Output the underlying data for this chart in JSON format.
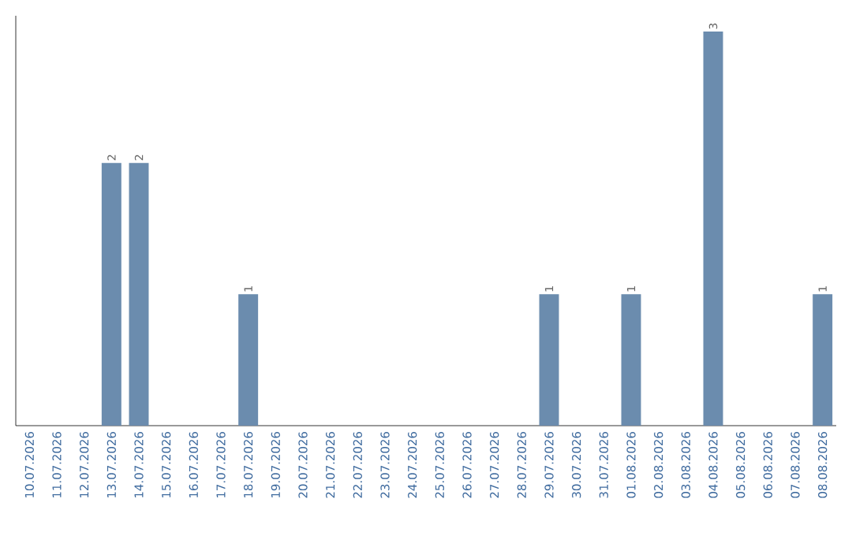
{
  "chart_data": {
    "type": "bar",
    "categories": [
      "10.07.2026",
      "11.07.2026",
      "12.07.2026",
      "13.07.2026",
      "14.07.2026",
      "15.07.2026",
      "16.07.2026",
      "17.07.2026",
      "18.07.2026",
      "19.07.2026",
      "20.07.2026",
      "21.07.2026",
      "22.07.2026",
      "23.07.2026",
      "24.07.2026",
      "25.07.2026",
      "26.07.2026",
      "27.07.2026",
      "28.07.2026",
      "29.07.2026",
      "30.07.2026",
      "31.07.2026",
      "01.08.2026",
      "02.08.2026",
      "03.08.2026",
      "04.08.2026",
      "05.08.2026",
      "06.08.2026",
      "07.08.2026",
      "08.08.2026"
    ],
    "values": [
      0,
      0,
      0,
      2,
      2,
      0,
      0,
      0,
      1,
      0,
      0,
      0,
      0,
      0,
      0,
      0,
      0,
      0,
      0,
      1,
      0,
      0,
      1,
      0,
      0,
      3,
      0,
      0,
      0,
      1
    ],
    "value_labels": [
      null,
      null,
      null,
      "2",
      "2",
      null,
      null,
      null,
      "1",
      null,
      null,
      null,
      null,
      null,
      null,
      null,
      null,
      null,
      null,
      "1",
      null,
      null,
      "1",
      null,
      null,
      "3",
      null,
      null,
      null,
      "1"
    ],
    "color": "#6b8cae"
  }
}
